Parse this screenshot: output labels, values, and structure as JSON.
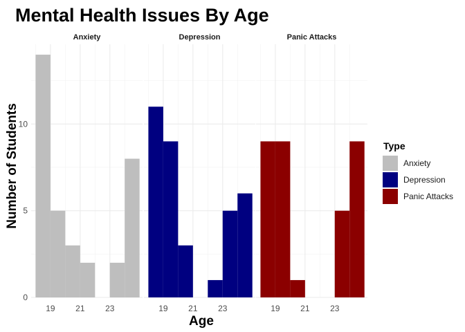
{
  "chart_data": {
    "type": "bar",
    "title": "Mental Health Issues By Age",
    "xlabel": "Age",
    "ylabel": "Number of Students",
    "ylim": [
      0,
      14.6
    ],
    "xlim": [
      17.7,
      25.2
    ],
    "yticks": [
      0,
      5,
      10
    ],
    "xticks": [
      19,
      21,
      23
    ],
    "grid": true,
    "legend": {
      "title": "Type",
      "position": "right"
    },
    "facets": [
      {
        "label": "Anxiety",
        "color": "#bebebe",
        "bars": [
          {
            "x0": 18,
            "x1": 19,
            "value": 14
          },
          {
            "x0": 19,
            "x1": 20,
            "value": 5
          },
          {
            "x0": 20,
            "x1": 21,
            "value": 3
          },
          {
            "x0": 21,
            "x1": 22,
            "value": 2
          },
          {
            "x0": 23,
            "x1": 24,
            "value": 2
          },
          {
            "x0": 24,
            "x1": 25,
            "value": 8
          }
        ]
      },
      {
        "label": "Depression",
        "color": "#000080",
        "bars": [
          {
            "x0": 18,
            "x1": 19,
            "value": 11
          },
          {
            "x0": 19,
            "x1": 20,
            "value": 9
          },
          {
            "x0": 20,
            "x1": 21,
            "value": 3
          },
          {
            "x0": 22,
            "x1": 23,
            "value": 1
          },
          {
            "x0": 23,
            "x1": 24,
            "value": 5
          },
          {
            "x0": 24,
            "x1": 25,
            "value": 6
          }
        ]
      },
      {
        "label": "Panic Attacks",
        "color": "#8b0000",
        "bars": [
          {
            "x0": 18,
            "x1": 19,
            "value": 9
          },
          {
            "x0": 19,
            "x1": 20,
            "value": 9
          },
          {
            "x0": 20,
            "x1": 21,
            "value": 1
          },
          {
            "x0": 23,
            "x1": 24,
            "value": 5
          },
          {
            "x0": 24,
            "x1": 25,
            "value": 9
          }
        ]
      }
    ]
  }
}
